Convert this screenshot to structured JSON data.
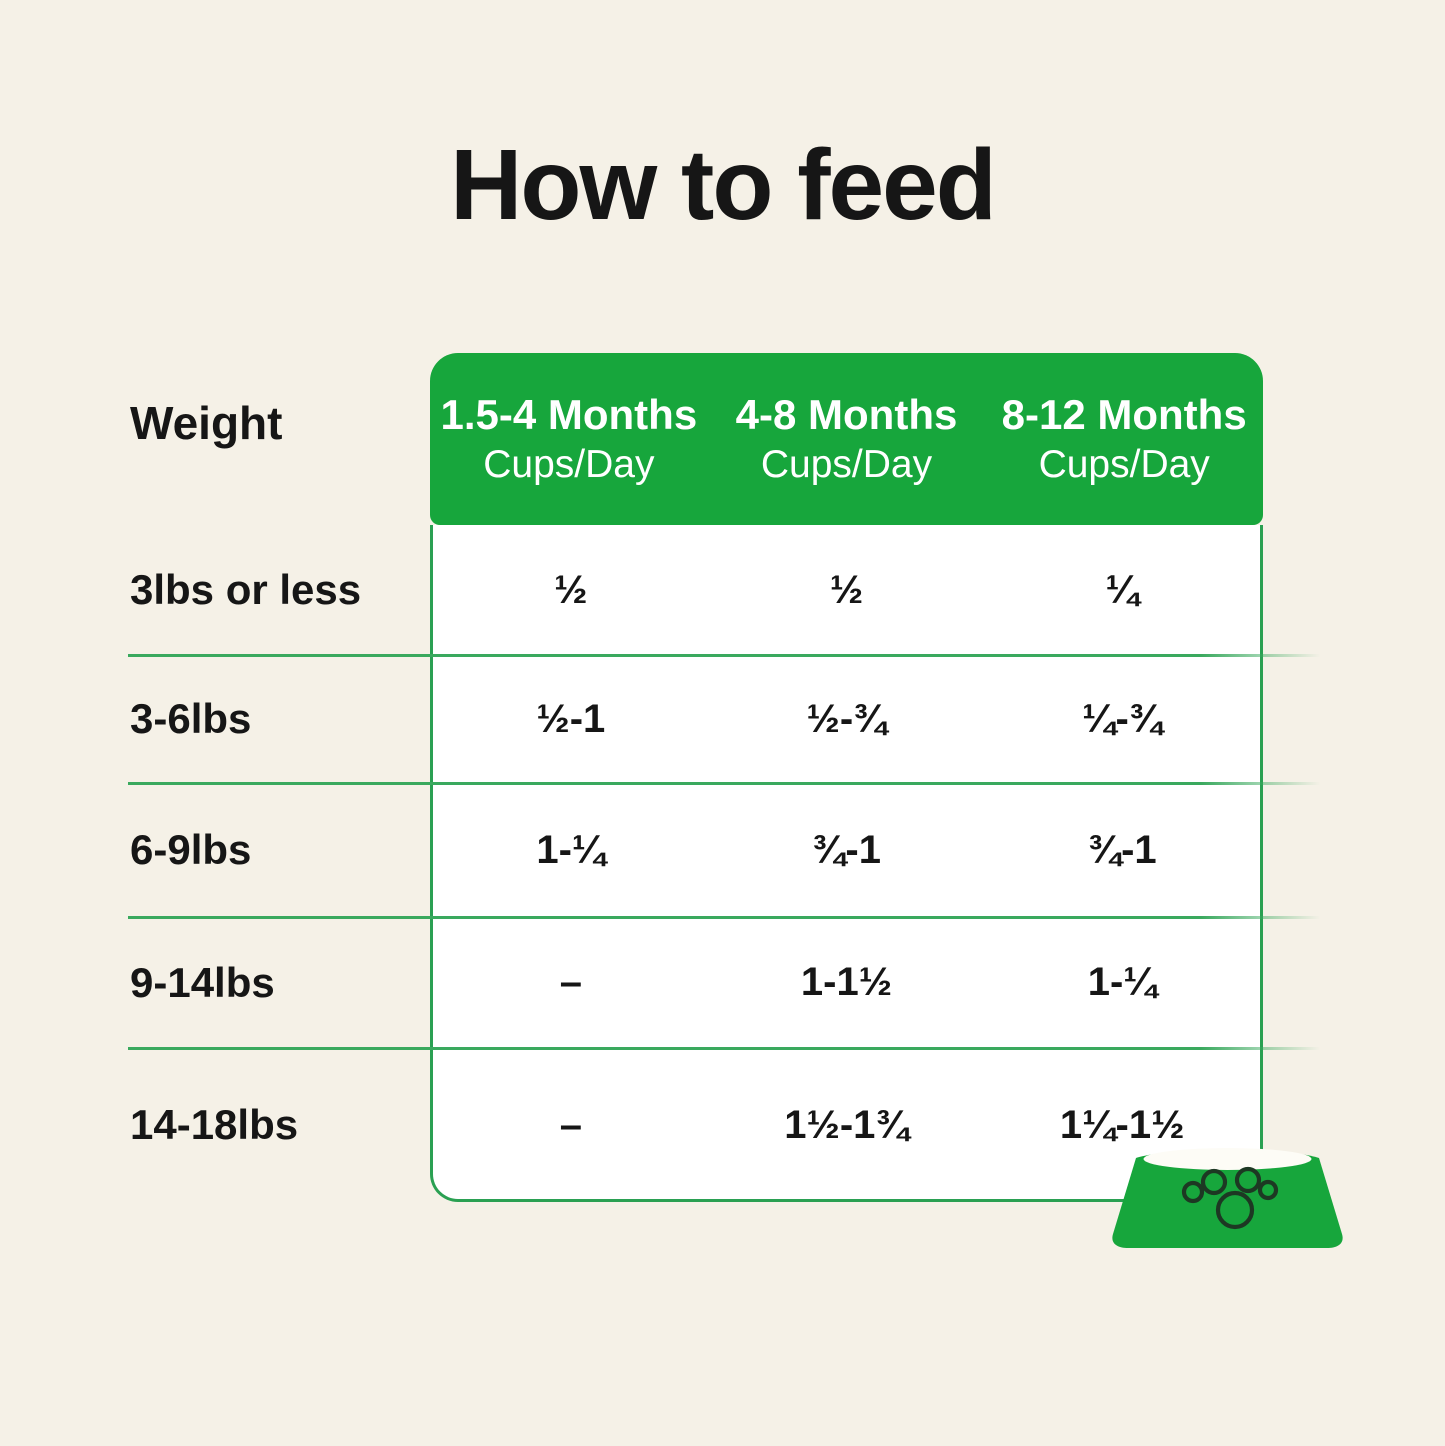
{
  "title": "How to feed",
  "chart_data": {
    "type": "table",
    "title": "How to feed",
    "row_header": "Weight",
    "columns": [
      {
        "label": "1.5-4 Months",
        "sub": "Cups/Day"
      },
      {
        "label": "4-8 Months",
        "sub": "Cups/Day"
      },
      {
        "label": "8-12 Months",
        "sub": "Cups/Day"
      }
    ],
    "rows": [
      {
        "weight": "3lbs or less",
        "values": [
          "½",
          "½",
          "¼"
        ]
      },
      {
        "weight": "3-6lbs",
        "values": [
          "½-1",
          "½-¾",
          "¼-¾"
        ]
      },
      {
        "weight": "6-9lbs",
        "values": [
          "1-¼",
          "¾-1",
          "¾-1"
        ]
      },
      {
        "weight": "9-14lbs",
        "values": [
          "–",
          "1-1½",
          "1-¼"
        ]
      },
      {
        "weight": "14-18lbs",
        "values": [
          "–",
          "1½-1¾",
          "1¼-1½"
        ]
      }
    ],
    "legend_position": "none",
    "grid": "horizontal-separators"
  },
  "icons": {
    "bowl": "dog-bowl-with-paw-print"
  },
  "colors": {
    "background": "#f5f1e7",
    "green_primary": "#17a63c",
    "green_border": "#2aa052",
    "green_line": "#3aa95e",
    "card": "#ffffff",
    "text": "#161616",
    "paw_outline": "#1d3823",
    "bowl_inner": "#fdfcf6",
    "header_text": "#ffffff"
  }
}
